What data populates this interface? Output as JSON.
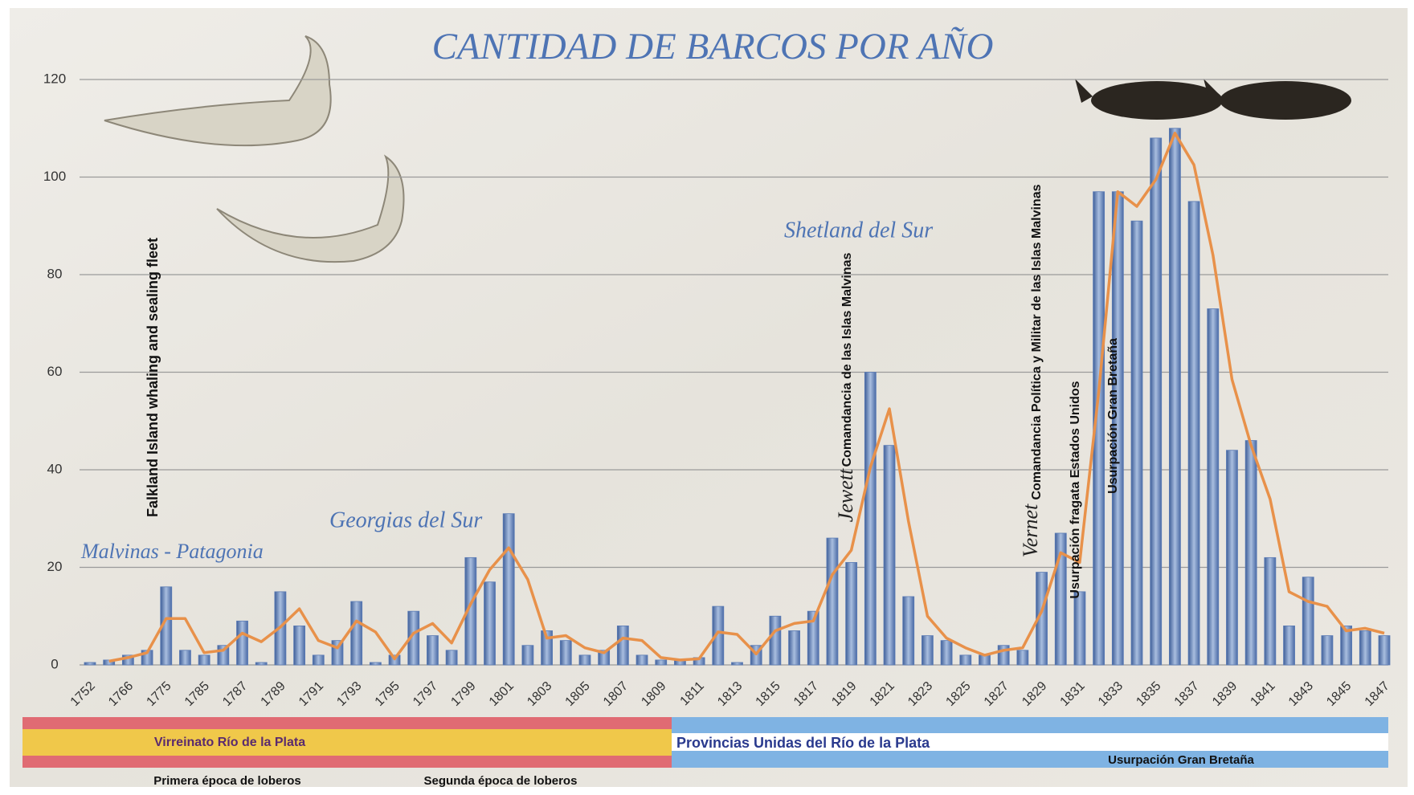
{
  "chart_data": {
    "type": "bar",
    "title": "CANTIDAD DE BARCOS POR AÑO",
    "categories": [
      "1752",
      null,
      "1766",
      null,
      "1775",
      null,
      "1785",
      null,
      "1787",
      null,
      "1789",
      null,
      "1791",
      null,
      "1793",
      null,
      "1795",
      null,
      "1797",
      null,
      "1799",
      null,
      "1801",
      null,
      "1803",
      null,
      "1805",
      null,
      "1807",
      null,
      "1809",
      null,
      "1811",
      null,
      "1813",
      null,
      "1815",
      null,
      "1817",
      null,
      "1819",
      null,
      "1821",
      null,
      "1823",
      null,
      "1825",
      null,
      "1827",
      null,
      "1829",
      null,
      "1831",
      null,
      "1833",
      null,
      "1835",
      null,
      "1837",
      null,
      "1839",
      null,
      "1841",
      null,
      "1843",
      null,
      "1845",
      null,
      "1847"
    ],
    "series": [
      {
        "type": "bar",
        "color": "#5a7bb5",
        "values": [
          0.5,
          1,
          2,
          3,
          16,
          3,
          2,
          4,
          9,
          0.5,
          15,
          8,
          2,
          5,
          13,
          0.5,
          2,
          11,
          6,
          3,
          22,
          17,
          31,
          4,
          7,
          5,
          2,
          3,
          8,
          2,
          1,
          1,
          1.5,
          12,
          0.5,
          4,
          10,
          7,
          11,
          26,
          21,
          60,
          45,
          14,
          6,
          5,
          2,
          2,
          4,
          3,
          19,
          27,
          15,
          97,
          97,
          91,
          108,
          110,
          95,
          73,
          44,
          46,
          22,
          8,
          18,
          6,
          8,
          7,
          6
        ]
      },
      {
        "type": "line",
        "color": "#e8914a",
        "values": [
          null,
          0.75,
          1.5,
          2.5,
          9.5,
          9.5,
          2.5,
          3,
          6.5,
          4.75,
          7.75,
          11.5,
          5,
          3.5,
          9,
          6.75,
          1.25,
          6.5,
          8.5,
          4.5,
          12.5,
          19.5,
          24,
          17.5,
          5.5,
          6,
          3.5,
          2.5,
          5.5,
          5,
          1.5,
          1,
          1.25,
          6.75,
          6.25,
          2.25,
          7,
          8.5,
          9,
          18.5,
          23.5,
          40.5,
          52.5,
          29.5,
          10,
          5.5,
          3.5,
          2,
          3,
          3.5,
          11,
          23,
          21,
          56,
          97,
          94,
          99.5,
          109,
          102.5,
          84,
          58.5,
          45,
          34,
          15,
          13,
          12,
          7,
          7.5,
          6.5
        ]
      }
    ],
    "ylim": [
      0,
      120
    ],
    "yticks": [
      0,
      20,
      40,
      60,
      80,
      100,
      120
    ],
    "grid": true,
    "annotations": [
      "Falkland Island whaling and sealing fleet",
      "Comandancia de las Islas Malvinas",
      "Jewett",
      "Comandancia Política y Militar de las Islas Malvinas",
      "Vernet",
      "Usurpación fragata Estados Unidos",
      "Usurpación Gran Bretaña",
      "Malvinas - Patagonia",
      "Georgias del Sur",
      "Shetland del Sur",
      "Virreinato Río de la Plata",
      "Provincias Unidas del Río de la Plata",
      "Usurpación Gran Bretaña",
      "Primera época de loberos",
      "Segunda época de loberos"
    ]
  }
}
